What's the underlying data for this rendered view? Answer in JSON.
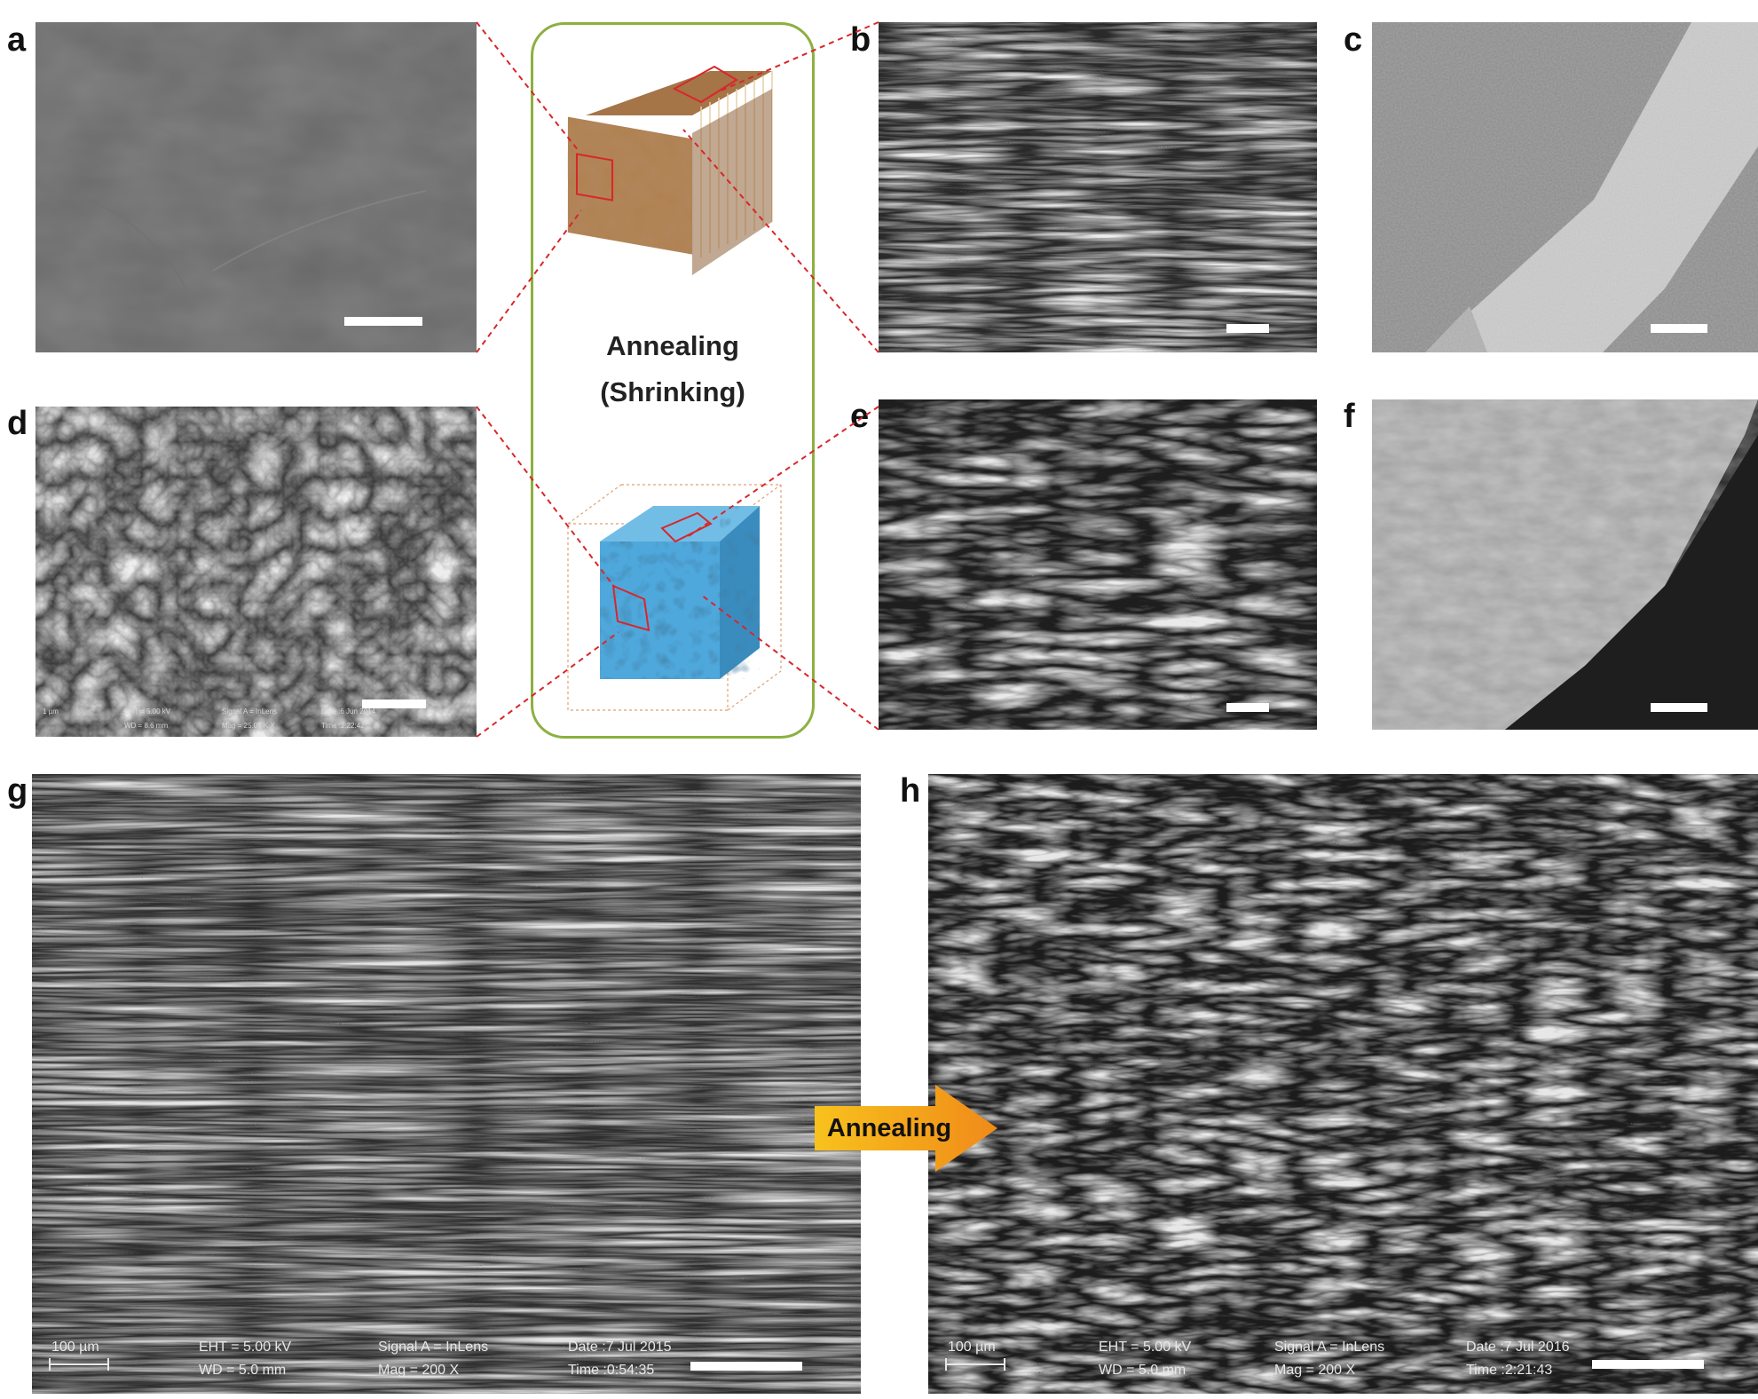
{
  "panel_labels": {
    "a": "a",
    "b": "b",
    "c": "c",
    "d": "d",
    "e": "e",
    "f": "f",
    "g": "g",
    "h": "h"
  },
  "schematic": {
    "line1": "Annealing",
    "line2": "(Shrinking)"
  },
  "arrow": {
    "label": "Annealing"
  },
  "sem_info_d": {
    "scale": "1 µm",
    "eht": "EHT = 5.00 kV",
    "wd": "WD = 8.6 mm",
    "signal": "Signal A = InLens",
    "mag": "Mag = 25.00 K X",
    "date": "Date :6 Jun 2014",
    "time": "Time :2:22:42"
  },
  "sem_info_g": {
    "scale": "100 µm",
    "eht": "EHT = 5.00 kV",
    "wd": "WD = 5.0 mm",
    "signal": "Signal A = InLens",
    "mag": "Mag = 200 X",
    "date": "Date :7 Jul 2015",
    "time": "Time :0:54:35"
  },
  "sem_info_h": {
    "scale": "100 µm",
    "eht": "EHT = 5.00 kV",
    "wd": "WD = 5.0 mm",
    "signal": "Signal A = InLens",
    "mag": "Mag = 200 X",
    "date": "Date :7 Jul 2016",
    "time": "Time :2:21:43"
  },
  "colors": {
    "schematic_border": "#8db040",
    "callout_line": "#d9262a",
    "arrow_fill": "#f5a21a",
    "cube_top": "#b08050",
    "cube_bottom": "#4fa8dc"
  }
}
